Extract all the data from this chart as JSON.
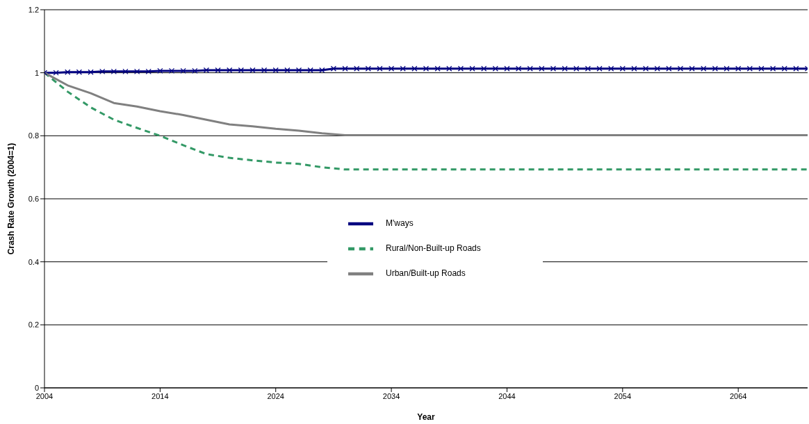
{
  "chart_data": {
    "type": "line",
    "xlabel": "Year",
    "ylabel": "Crash Rate Growth (2004=1)",
    "xlim": [
      2004,
      2070
    ],
    "xticks": [
      2004,
      2014,
      2024,
      2034,
      2044,
      2054,
      2064
    ],
    "ylim": [
      0,
      1.2
    ],
    "yticks": [
      0,
      0.2,
      0.4,
      0.6,
      0.8,
      1,
      1.2
    ],
    "grid": "y",
    "legend": "center",
    "series": [
      {
        "name": "M'ways",
        "color": "#000080",
        "marker": "cross",
        "line_style": "solid",
        "x": [
          2004,
          2005,
          2006,
          2007,
          2008,
          2009,
          2010,
          2011,
          2012,
          2013,
          2014,
          2015,
          2016,
          2017,
          2018,
          2019,
          2020,
          2021,
          2022,
          2023,
          2024,
          2025,
          2026,
          2027,
          2028,
          2029,
          2030,
          2031,
          2032,
          2033,
          2034,
          2035,
          2036,
          2037,
          2038,
          2039,
          2040,
          2041,
          2042,
          2043,
          2044,
          2045,
          2046,
          2047,
          2048,
          2049,
          2050,
          2051,
          2052,
          2053,
          2054,
          2055,
          2056,
          2057,
          2058,
          2059,
          2060,
          2061,
          2062,
          2063,
          2064,
          2065,
          2066,
          2067,
          2068,
          2069,
          2070
        ],
        "values": [
          1,
          1,
          1.002,
          1.002,
          1.002,
          1.004,
          1.004,
          1.004,
          1.004,
          1.004,
          1.006,
          1.006,
          1.006,
          1.006,
          1.008,
          1.008,
          1.008,
          1.008,
          1.008,
          1.008,
          1.008,
          1.008,
          1.008,
          1.008,
          1.008,
          1.013,
          1.013,
          1.013,
          1.013,
          1.013,
          1.013,
          1.013,
          1.013,
          1.013,
          1.013,
          1.013,
          1.013,
          1.013,
          1.013,
          1.013,
          1.013,
          1.013,
          1.013,
          1.013,
          1.013,
          1.013,
          1.013,
          1.013,
          1.013,
          1.013,
          1.013,
          1.013,
          1.013,
          1.013,
          1.013,
          1.013,
          1.013,
          1.013,
          1.013,
          1.013,
          1.013,
          1.013,
          1.013,
          1.013,
          1.013,
          1.013,
          1.013
        ]
      },
      {
        "name": "Rural/Non-Built-up Roads",
        "color": "#339966",
        "marker": "none",
        "line_style": "dashed",
        "x": [
          2004,
          2006,
          2008,
          2010,
          2012,
          2014,
          2016,
          2018,
          2020,
          2022,
          2024,
          2026,
          2028,
          2030,
          2070
        ],
        "values": [
          1,
          0.94,
          0.89,
          0.851,
          0.825,
          0.8,
          0.77,
          0.742,
          0.73,
          0.722,
          0.715,
          0.711,
          0.7,
          0.693,
          0.693
        ]
      },
      {
        "name": "Urban/Built-up Roads",
        "color": "#808080",
        "marker": "none",
        "line_style": "solid",
        "x": [
          2004,
          2006,
          2008,
          2010,
          2012,
          2014,
          2016,
          2018,
          2020,
          2022,
          2024,
          2026,
          2028,
          2030,
          2070
        ],
        "values": [
          1,
          0.96,
          0.935,
          0.904,
          0.893,
          0.878,
          0.866,
          0.851,
          0.836,
          0.83,
          0.822,
          0.816,
          0.808,
          0.802,
          0.802
        ]
      }
    ]
  }
}
